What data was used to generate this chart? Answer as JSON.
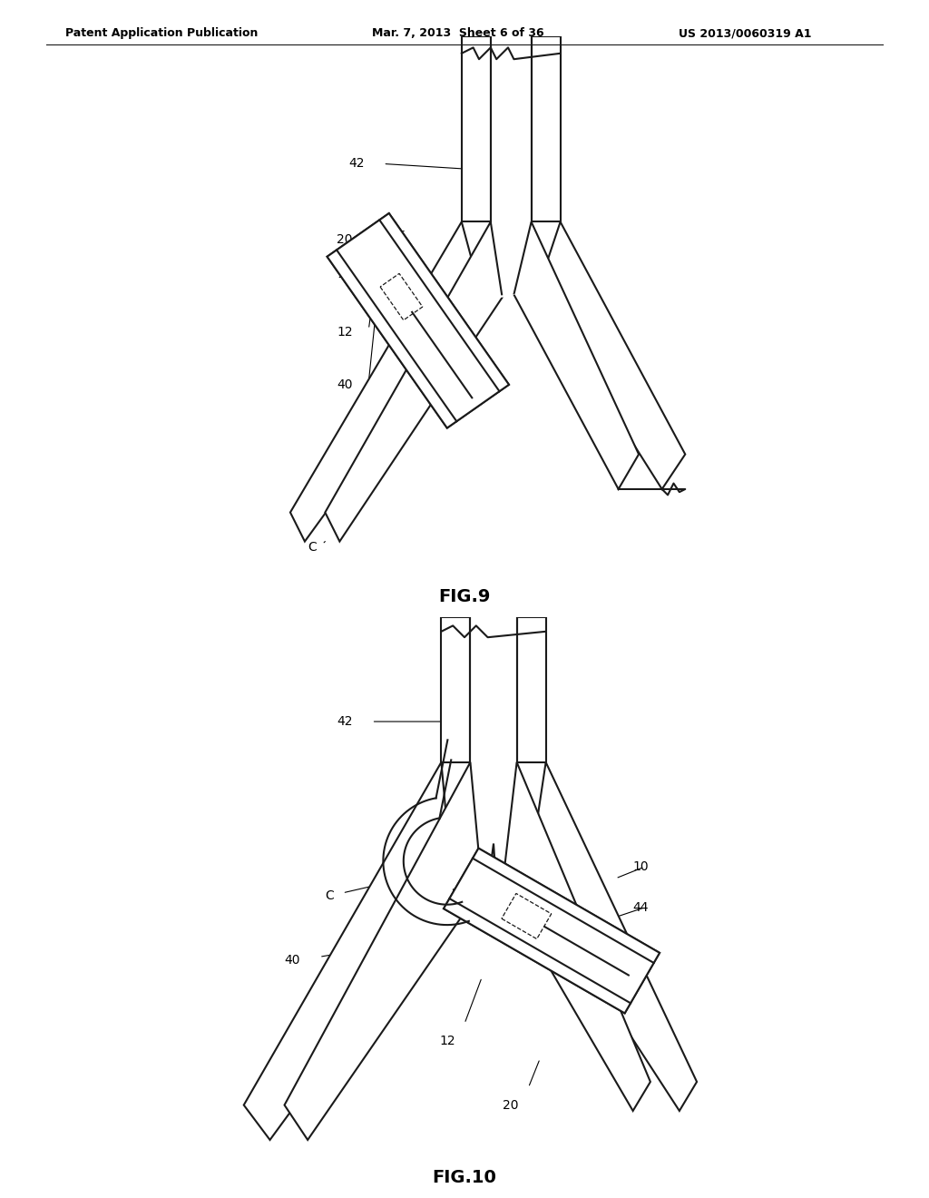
{
  "background_color": "#ffffff",
  "header_left": "Patent Application Publication",
  "header_mid": "Mar. 7, 2013  Sheet 6 of 36",
  "header_right": "US 2013/0060319 A1",
  "fig9_label": "FIG.9",
  "fig10_label": "FIG.10",
  "line_color": "#1a1a1a",
  "hatch_color": "#666666",
  "label_color": "#000000",
  "label_fontsize": 10,
  "header_fontsize": 9,
  "fig_label_fontsize": 14
}
